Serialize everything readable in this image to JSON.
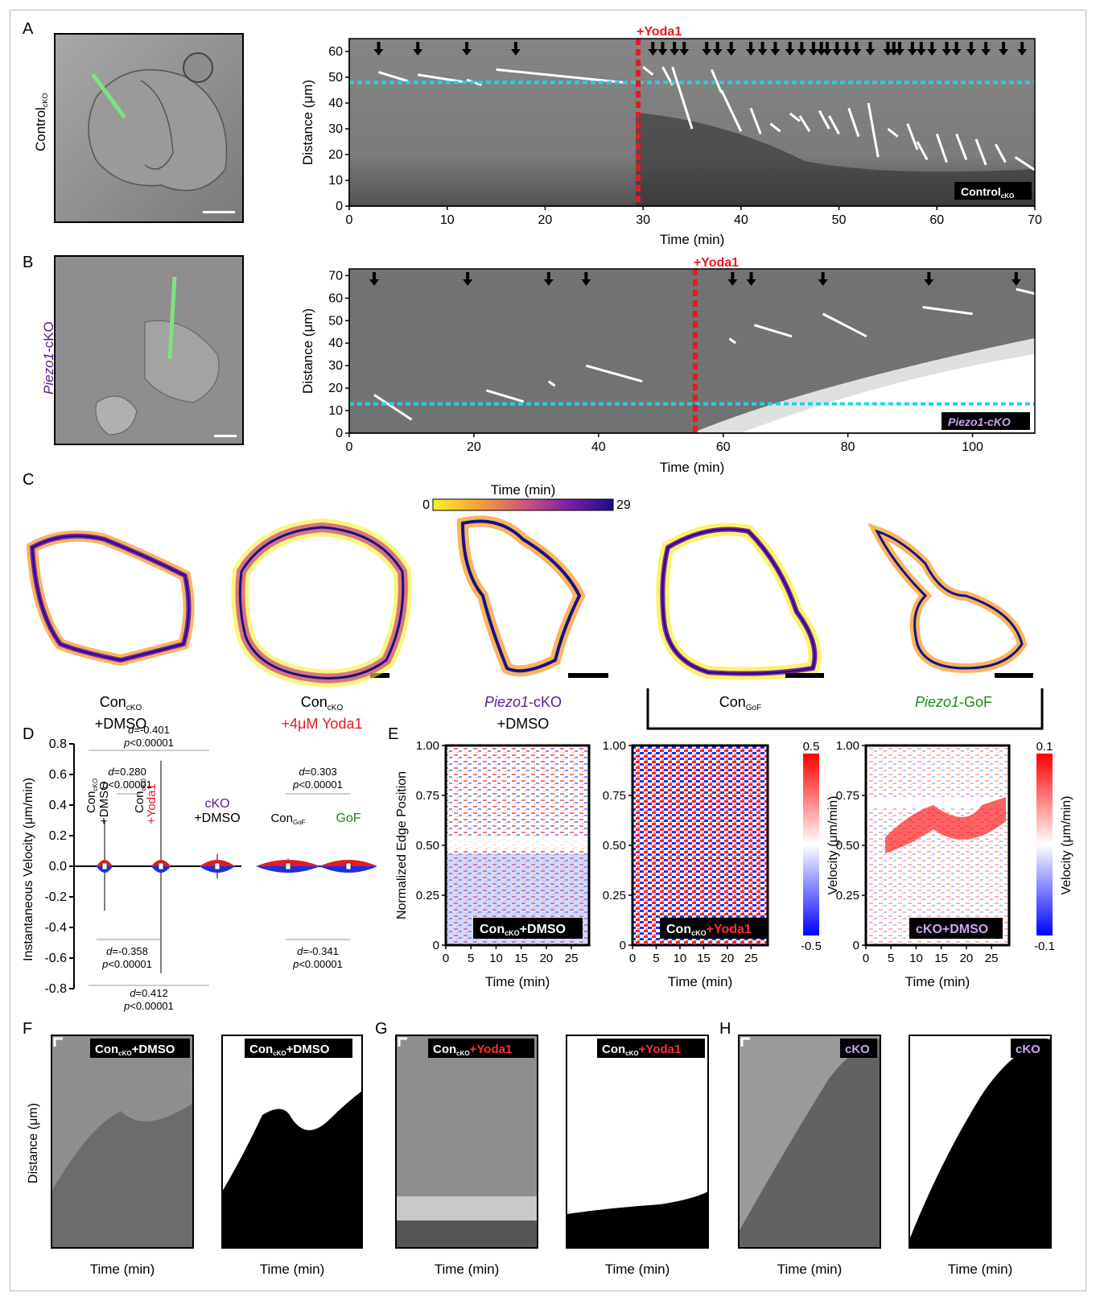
{
  "panel_letters": {
    "A": "A",
    "B": "B",
    "C": "C",
    "D": "D",
    "E": "E",
    "F": "F",
    "G": "G",
    "H": "H"
  },
  "colors": {
    "red": "#e8191f",
    "cyan": "#22d3e0",
    "green": "#7ee37e",
    "purple": "#5a1a8c",
    "gof_green": "#1b8a1b",
    "lavender": "#c9a5f0"
  },
  "panelA": {
    "cell_label": "Control",
    "cell_label_sub": "cKO",
    "yoda_label": "+Yoda1",
    "badge": "Control",
    "badge_sub": "cKO",
    "chart": {
      "type": "kymograph",
      "xlabel": "Time (min)",
      "ylabel": "Distance (μm)",
      "xlim": [
        0,
        70
      ],
      "ylim": [
        0,
        65
      ],
      "xticks": [
        "0",
        "10",
        "20",
        "30",
        "40",
        "50",
        "60",
        "70"
      ],
      "yticks": [
        "0",
        "10",
        "20",
        "30",
        "40",
        "50",
        "60"
      ],
      "yoda_time": 29.5,
      "baseline": 48,
      "arrow_times": [
        3,
        7,
        12,
        17,
        31,
        32,
        33.2,
        34.2,
        36.5,
        37.6,
        39,
        41,
        42.2,
        43.5,
        45,
        46.2,
        47.4,
        48.2,
        48.8,
        49.8,
        50.8,
        51.8,
        53.2,
        55,
        55.6,
        56.2,
        57.5,
        58.4,
        59.5,
        61,
        62,
        63.5,
        65,
        66.8,
        68.7
      ],
      "segments": [
        [
          3,
          52,
          6,
          48.5
        ],
        [
          7,
          51,
          12,
          48
        ],
        [
          12,
          49,
          13.5,
          47
        ],
        [
          15,
          53,
          28,
          48
        ],
        [
          30,
          54,
          31,
          51
        ],
        [
          32,
          54,
          33,
          47
        ],
        [
          33,
          54,
          35,
          30
        ],
        [
          37,
          53,
          38,
          44
        ],
        [
          38,
          45,
          40,
          29
        ],
        [
          41,
          38,
          42,
          28
        ],
        [
          43,
          32,
          44,
          29
        ],
        [
          45,
          36,
          46,
          33
        ],
        [
          46,
          35,
          47,
          29
        ],
        [
          48,
          37,
          49,
          30
        ],
        [
          49,
          35,
          50,
          28
        ],
        [
          51,
          38,
          52,
          27
        ],
        [
          53,
          40,
          54,
          19
        ],
        [
          55,
          30,
          56,
          27
        ],
        [
          57,
          32,
          58,
          22
        ],
        [
          58,
          25,
          59,
          18
        ],
        [
          60,
          28,
          61,
          17
        ],
        [
          62,
          28,
          63,
          18
        ],
        [
          64,
          26,
          65,
          16
        ],
        [
          66,
          24,
          67,
          17
        ],
        [
          68,
          19,
          70,
          14
        ]
      ]
    }
  },
  "panelB": {
    "cell_label_prefix": "Piezo1",
    "cell_label_suffix": "-cKO",
    "yoda_label": "+Yoda1",
    "badge": "Piezo1-cKO",
    "chart": {
      "type": "kymograph",
      "xlabel": "Time (min)",
      "ylabel": "Distance (μm)",
      "xlim": [
        0,
        110
      ],
      "ylim": [
        0,
        73
      ],
      "xticks": [
        "0",
        "20",
        "40",
        "60",
        "80",
        "100"
      ],
      "yticks": [
        "0",
        "10",
        "20",
        "30",
        "40",
        "50",
        "60",
        "70"
      ],
      "yoda_time": 55.5,
      "baseline": 13,
      "arrow_times": [
        4,
        19,
        32,
        38,
        61.5,
        64.5,
        76,
        93,
        107
      ],
      "segments": [
        [
          4,
          17,
          10,
          6
        ],
        [
          22,
          19,
          28,
          14
        ],
        [
          32,
          23,
          33,
          21
        ],
        [
          38,
          30,
          47,
          23
        ],
        [
          61,
          42,
          62,
          40
        ],
        [
          65,
          48,
          71,
          43
        ],
        [
          76,
          53,
          83,
          43
        ],
        [
          92,
          56,
          100,
          53
        ],
        [
          107,
          64,
          110,
          62
        ]
      ]
    }
  },
  "panelC": {
    "colorbar_title": "Time (min)",
    "colorbar_min": "0",
    "colorbar_max": "29",
    "cells": [
      {
        "line1": "Con",
        "line1_sub": "cKO",
        "line2": "+DMSO"
      },
      {
        "line1": "Con",
        "line1_sub": "cKO",
        "line2": "+4μM Yoda1"
      },
      {
        "line1": "Piezo1",
        "line1_suffix": "-cKO",
        "line2": "+DMSO"
      },
      {
        "line1": "Con",
        "line1_sub": "GoF"
      },
      {
        "line1": "Piezo1",
        "line1_suffix": "-GoF"
      }
    ]
  },
  "panelD": {
    "ylabel": "Instantaneous Velocity (μm/min)",
    "yticks": [
      "0.8",
      "0.6",
      "0.4",
      "0.2",
      "0.0",
      "-0.2",
      "-0.4",
      "-0.6",
      "-0.8"
    ],
    "chart": {
      "type": "violin",
      "groups": [
        {
          "label": "Con cKO +DMSO",
          "max": 0.3,
          "min": -0.29
        },
        {
          "label": "Con cKO +Yoda1",
          "max": 0.69,
          "min": -0.7
        },
        {
          "label": "cKO +DMSO",
          "max": 0.08,
          "min": -0.08
        },
        {
          "label": "Con GoF",
          "max": 0.05,
          "min": -0.04
        },
        {
          "label": "GoF",
          "max": 0.04,
          "min": -0.04
        }
      ]
    },
    "labels": {
      "g1_top": "Con",
      "g1_sub": "cKO",
      "g1_bottom": "+DMSO",
      "g2_top": "Con",
      "g2_sub": "cKO",
      "g2_bottom": "+Yoda1",
      "g3_top": "cKO",
      "g3_bottom": "+DMSO",
      "g4": "Con",
      "g4_sub": "GoF",
      "g5": "GoF"
    },
    "stats": {
      "top_wide_d": "=-0.401",
      "top_wide_p": "<0.00001",
      "top_mid_d": "=0.280",
      "top_mid_p": "<0.00001",
      "top_right_d": "=0.303",
      "top_right_p": "<0.00001",
      "bot_left_d": "=-0.358",
      "bot_left_p": "<0.00001",
      "bot_right_d": "=-0.341",
      "bot_right_p": "<0.00001",
      "bot_wide_d": "=0.412",
      "bot_wide_p": "<0.00001"
    }
  },
  "panelE": {
    "ylabel": "Normalized Edge Position",
    "xlabel": "Time (min)",
    "xticks": [
      "0",
      "5",
      "10",
      "15",
      "20",
      "25"
    ],
    "yticks": [
      "0",
      "0.25",
      "0.50",
      "0.75",
      "1.00"
    ],
    "badge1_a": "Con",
    "badge1_sub": "cKO",
    "badge1_b": "+DMSO",
    "badge2_a": "Con",
    "badge2_sub": "cKO",
    "badge2_b": "+Yoda1",
    "badge3": "cKO+DMSO",
    "cbar1_label": "Velocity (μm/min)",
    "cbar1_max": "0.5",
    "cbar1_min": "-0.5",
    "cbar2_label": "Velocity (μm/min)",
    "cbar2_max": "0.1",
    "cbar2_min": "-0.1"
  },
  "panelFGH": {
    "ylabel": "Distance (μm)",
    "xlabel": "Time (min)",
    "badge_con": "Con",
    "badge_sub": "cKO",
    "badge_dmso": "+DMSO",
    "badge_yoda": "+Yoda1",
    "badge_cko": "cKO"
  }
}
